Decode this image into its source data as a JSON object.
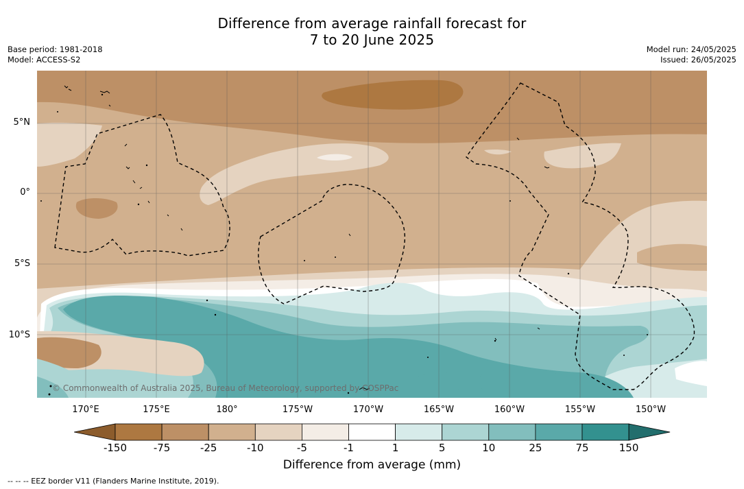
{
  "title_line1": "Difference from average rainfall forecast for",
  "title_line2": "7 to 20 June 2025",
  "base_period": "Base period: 1981-2018",
  "model": "Model: ACCESS-S2",
  "model_run": "Model run: 24/05/2025",
  "issued": "Issued: 26/05/2025",
  "copyright": "© Commonwealth of Australia 2025, Bureau of Meteorology, supported by COSPPac",
  "lat_labels": [
    "5°N",
    "0°",
    "5°S",
    "10°S"
  ],
  "lon_labels": [
    "170°E",
    "175°E",
    "180°",
    "175°W",
    "170°W",
    "165°W",
    "160°W",
    "155°W",
    "150°W"
  ],
  "colorbar": {
    "ticks": [
      "-150",
      "-75",
      "-25",
      "-10",
      "-5",
      "-1",
      "1",
      "5",
      "10",
      "25",
      "75",
      "150"
    ],
    "colors": [
      "#8c5c2c",
      "#ad7841",
      "#bd9066",
      "#d1b08e",
      "#e5d3c0",
      "#f4ede6",
      "#ffffff",
      "#d7ebea",
      "#acd5d3",
      "#82bebd",
      "#5aa9a9",
      "#33918f",
      "#226e6d"
    ],
    "label": "Difference from average (mm)"
  },
  "footnote": "--  --  -- EEZ border V11 (Flanders Marine Institute, 2019)."
}
